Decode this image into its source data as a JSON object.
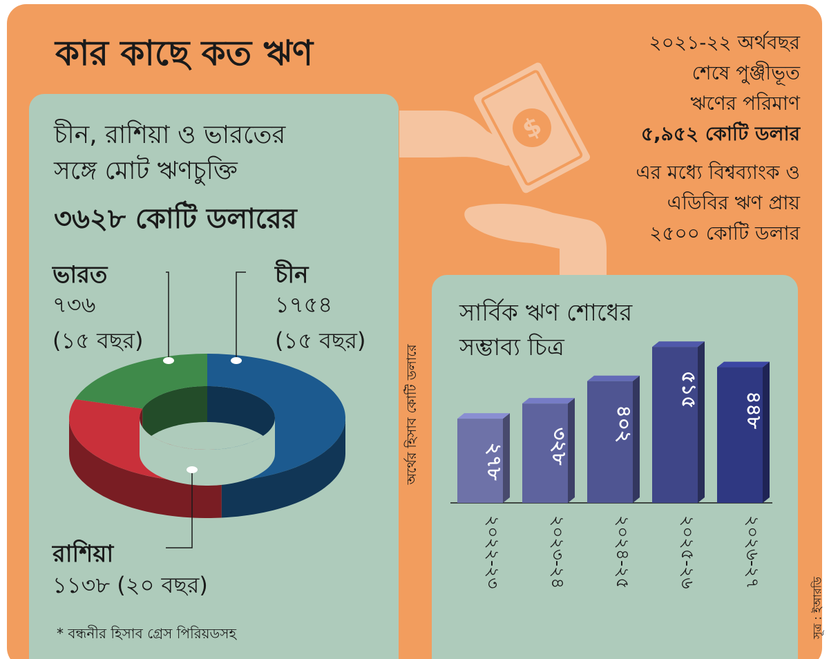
{
  "title": "কার কাছে কত ঋণ",
  "summary": {
    "line1": "২০২১-২২ অর্থবছর",
    "line2": "শেষে পুঞ্জীভূত",
    "line3": "ঋণের পরিমাণ",
    "amount": "৫,৯৫২ কোটি ডলার",
    "sub1": "এর মধ্যে বিশ্বব্যাংক ও",
    "sub2": "এডিবির ঋণ প্রায়",
    "sub3": "২৫০০ কোটি ডলার"
  },
  "left_panel": {
    "heading_line1": "চীন, রাশিয়া ও ভারতের",
    "heading_line2": "সঙ্গে মোট ঋণচুক্তি",
    "total": "৩৬২৮ কোটি ডলারের",
    "footnote": "* বন্ধনীর হিসাব গ্রেস পিরিয়ডসহ"
  },
  "right_panel": {
    "heading_line1": "সার্বিক ঋণ শোধের",
    "heading_line2": "সম্ভাব্য চিত্র",
    "y_label": "অর্থের হিসাব কোটি ডলারে"
  },
  "source": "সূত্র : ইআরডি",
  "colors": {
    "background": "#f29d5e",
    "panel": "#aecbbb",
    "china": "#1c5a8f",
    "russia": "#c9303a",
    "india": "#3f8a4a",
    "hand": "#f5c4a0"
  },
  "chart_data": [
    {
      "type": "pie",
      "style": "3d-donut",
      "slices": [
        {
          "name": "চীন",
          "value": 1754,
          "value_label": "১৭৫৪",
          "note": "(১৫ বছর)",
          "color": "#1c5a8f"
        },
        {
          "name": "রাশিয়া",
          "value": 1138,
          "value_label": "১১৩৮",
          "note": "(২০ বছর)",
          "color": "#c9303a"
        },
        {
          "name": "ভারত",
          "value": 736,
          "value_label": "৭৩৬",
          "note": "(১৫ বছর)",
          "color": "#3f8a4a"
        }
      ]
    },
    {
      "type": "bar",
      "style": "3d",
      "categories": [
        "২০২২-২৩",
        "২০২৩-২৪",
        "২০২৪-২৫",
        "২০২৫-২৬",
        "২০২৬-২৭"
      ],
      "values": [
        278,
        328,
        402,
        515,
        448
      ],
      "value_labels": [
        "২৭৮",
        "৩২৮",
        "৪০২",
        "৫১৫",
        "৪৪৮"
      ],
      "ylabel": "অর্থের হিসাব কোটি ডলারে",
      "ylim": [
        0,
        520
      ],
      "grid": false,
      "colors": [
        "#6e72a8",
        "#5e639e",
        "#4f5592",
        "#3f4688",
        "#2f3882"
      ]
    }
  ]
}
